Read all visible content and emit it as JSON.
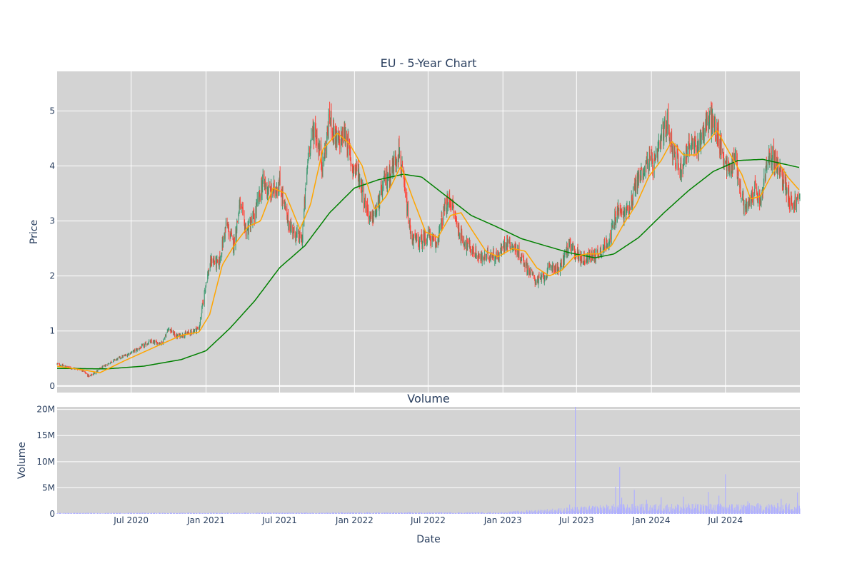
{
  "chart_data": [
    {
      "type": "candlestick",
      "title": "EU - 5-Year Chart",
      "ylabel": "Price",
      "ylim": [
        -0.12,
        5.72
      ],
      "yticks": [
        0,
        1,
        2,
        3,
        4,
        5
      ],
      "xlim": [
        "2020-01-01",
        "2024-12-31"
      ],
      "grid": true,
      "background": "#d3d3d3",
      "colors": {
        "up": "#3d9970",
        "down": "#ff4136",
        "ma_short": "#ffa500",
        "ma_long": "#008000"
      },
      "price_path": [
        [
          "2020-01-01",
          0.4
        ],
        [
          "2020-02-01",
          0.33
        ],
        [
          "2020-03-01",
          0.3
        ],
        [
          "2020-03-20",
          0.17
        ],
        [
          "2020-04-15",
          0.31
        ],
        [
          "2020-05-15",
          0.45
        ],
        [
          "2020-06-15",
          0.55
        ],
        [
          "2020-07-15",
          0.66
        ],
        [
          "2020-08-15",
          0.8
        ],
        [
          "2020-09-15",
          0.78
        ],
        [
          "2020-10-01",
          1.05
        ],
        [
          "2020-10-20",
          0.9
        ],
        [
          "2020-11-15",
          0.95
        ],
        [
          "2020-12-15",
          1.05
        ],
        [
          "2021-01-01",
          1.9
        ],
        [
          "2021-01-15",
          2.3
        ],
        [
          "2021-02-01",
          2.2
        ],
        [
          "2021-02-20",
          2.95
        ],
        [
          "2021-03-10",
          2.55
        ],
        [
          "2021-03-25",
          3.3
        ],
        [
          "2021-04-10",
          2.8
        ],
        [
          "2021-05-01",
          3.1
        ],
        [
          "2021-05-20",
          3.7
        ],
        [
          "2021-06-10",
          3.5
        ],
        [
          "2021-07-01",
          3.7
        ],
        [
          "2021-07-20",
          3.0
        ],
        [
          "2021-08-10",
          2.75
        ],
        [
          "2021-08-25",
          2.65
        ],
        [
          "2021-09-10",
          4.3
        ],
        [
          "2021-09-25",
          4.7
        ],
        [
          "2021-10-15",
          4.0
        ],
        [
          "2021-11-01",
          4.9
        ],
        [
          "2021-11-20",
          4.4
        ],
        [
          "2021-12-10",
          4.6
        ],
        [
          "2021-12-25",
          4.0
        ],
        [
          "2022-01-10",
          3.9
        ],
        [
          "2022-01-25",
          3.4
        ],
        [
          "2022-02-10",
          3.0
        ],
        [
          "2022-02-25",
          3.2
        ],
        [
          "2022-03-15",
          3.7
        ],
        [
          "2022-04-01",
          3.9
        ],
        [
          "2022-04-20",
          4.3
        ],
        [
          "2022-05-05",
          3.5
        ],
        [
          "2022-05-20",
          2.7
        ],
        [
          "2022-06-10",
          2.6
        ],
        [
          "2022-07-01",
          2.75
        ],
        [
          "2022-07-20",
          2.55
        ],
        [
          "2022-08-10",
          3.2
        ],
        [
          "2022-08-25",
          3.4
        ],
        [
          "2022-09-15",
          2.8
        ],
        [
          "2022-10-01",
          2.6
        ],
        [
          "2022-10-20",
          2.45
        ],
        [
          "2022-11-10",
          2.3
        ],
        [
          "2022-12-01",
          2.4
        ],
        [
          "2022-12-20",
          2.35
        ],
        [
          "2023-01-10",
          2.65
        ],
        [
          "2023-01-25",
          2.55
        ],
        [
          "2023-02-15",
          2.35
        ],
        [
          "2023-03-10",
          2.05
        ],
        [
          "2023-03-25",
          1.9
        ],
        [
          "2023-04-15",
          2.0
        ],
        [
          "2023-05-01",
          2.2
        ],
        [
          "2023-05-20",
          2.1
        ],
        [
          "2023-06-10",
          2.55
        ],
        [
          "2023-06-25",
          2.45
        ],
        [
          "2023-07-15",
          2.3
        ],
        [
          "2023-08-01",
          2.35
        ],
        [
          "2023-08-20",
          2.4
        ],
        [
          "2023-09-10",
          2.55
        ],
        [
          "2023-09-25",
          2.8
        ],
        [
          "2023-10-10",
          3.2
        ],
        [
          "2023-10-25",
          3.1
        ],
        [
          "2023-11-10",
          3.3
        ],
        [
          "2023-11-25",
          3.7
        ],
        [
          "2023-12-10",
          3.9
        ],
        [
          "2023-12-25",
          4.1
        ],
        [
          "2024-01-10",
          4.0
        ],
        [
          "2024-01-25",
          4.5
        ],
        [
          "2024-02-10",
          4.8
        ],
        [
          "2024-02-25",
          4.2
        ],
        [
          "2024-03-15",
          3.95
        ],
        [
          "2024-04-01",
          4.4
        ],
        [
          "2024-04-20",
          4.3
        ],
        [
          "2024-05-10",
          4.7
        ],
        [
          "2024-05-25",
          4.85
        ],
        [
          "2024-06-10",
          4.6
        ],
        [
          "2024-06-25",
          4.2
        ],
        [
          "2024-07-10",
          3.9
        ],
        [
          "2024-07-25",
          4.2
        ],
        [
          "2024-08-10",
          3.4
        ],
        [
          "2024-08-25",
          3.2
        ],
        [
          "2024-09-10",
          3.6
        ],
        [
          "2024-09-25",
          3.3
        ],
        [
          "2024-10-10",
          4.0
        ],
        [
          "2024-10-25",
          4.2
        ],
        [
          "2024-11-10",
          3.9
        ],
        [
          "2024-11-25",
          3.7
        ],
        [
          "2024-12-10",
          3.3
        ],
        [
          "2024-12-31",
          3.4
        ]
      ],
      "ma_short": [
        [
          "2020-01-01",
          0.36
        ],
        [
          "2020-03-15",
          0.28
        ],
        [
          "2020-04-15",
          0.24
        ],
        [
          "2020-06-15",
          0.46
        ],
        [
          "2020-09-01",
          0.72
        ],
        [
          "2020-11-01",
          0.92
        ],
        [
          "2020-12-15",
          0.98
        ],
        [
          "2021-01-10",
          1.3
        ],
        [
          "2021-02-10",
          2.2
        ],
        [
          "2021-03-15",
          2.6
        ],
        [
          "2021-04-15",
          2.9
        ],
        [
          "2021-05-15",
          3.0
        ],
        [
          "2021-06-15",
          3.6
        ],
        [
          "2021-07-15",
          3.5
        ],
        [
          "2021-08-20",
          2.85
        ],
        [
          "2021-09-15",
          3.3
        ],
        [
          "2021-10-15",
          4.3
        ],
        [
          "2021-11-20",
          4.6
        ],
        [
          "2021-12-20",
          4.4
        ],
        [
          "2022-01-20",
          4.0
        ],
        [
          "2022-02-20",
          3.2
        ],
        [
          "2022-03-20",
          3.45
        ],
        [
          "2022-04-25",
          4.0
        ],
        [
          "2022-05-25",
          3.4
        ],
        [
          "2022-06-25",
          2.8
        ],
        [
          "2022-07-25",
          2.7
        ],
        [
          "2022-08-25",
          3.1
        ],
        [
          "2022-09-20",
          3.15
        ],
        [
          "2022-10-20",
          2.8
        ],
        [
          "2022-11-20",
          2.45
        ],
        [
          "2022-12-20",
          2.35
        ],
        [
          "2023-01-25",
          2.5
        ],
        [
          "2023-02-25",
          2.45
        ],
        [
          "2023-03-25",
          2.15
        ],
        [
          "2023-04-25",
          2.0
        ],
        [
          "2023-05-25",
          2.1
        ],
        [
          "2023-06-25",
          2.35
        ],
        [
          "2023-07-25",
          2.4
        ],
        [
          "2023-08-25",
          2.4
        ],
        [
          "2023-09-25",
          2.55
        ],
        [
          "2023-10-25",
          2.95
        ],
        [
          "2023-11-25",
          3.3
        ],
        [
          "2023-12-25",
          3.8
        ],
        [
          "2024-01-25",
          4.1
        ],
        [
          "2024-02-20",
          4.45
        ],
        [
          "2024-03-20",
          4.2
        ],
        [
          "2024-04-20",
          4.2
        ],
        [
          "2024-05-20",
          4.45
        ],
        [
          "2024-06-10",
          4.65
        ],
        [
          "2024-07-10",
          4.25
        ],
        [
          "2024-08-10",
          3.85
        ],
        [
          "2024-09-01",
          3.4
        ],
        [
          "2024-09-25",
          3.45
        ],
        [
          "2024-10-20",
          3.8
        ],
        [
          "2024-11-10",
          4.05
        ],
        [
          "2024-12-01",
          3.8
        ],
        [
          "2024-12-31",
          3.55
        ]
      ],
      "ma_long": [
        [
          "2020-01-01",
          0.32
        ],
        [
          "2020-05-01",
          0.31
        ],
        [
          "2020-08-01",
          0.36
        ],
        [
          "2020-11-01",
          0.48
        ],
        [
          "2021-01-01",
          0.64
        ],
        [
          "2021-03-01",
          1.05
        ],
        [
          "2021-05-01",
          1.55
        ],
        [
          "2021-07-01",
          2.15
        ],
        [
          "2021-09-01",
          2.55
        ],
        [
          "2021-11-01",
          3.15
        ],
        [
          "2022-01-01",
          3.6
        ],
        [
          "2022-03-01",
          3.75
        ],
        [
          "2022-05-01",
          3.85
        ],
        [
          "2022-06-15",
          3.8
        ],
        [
          "2022-08-15",
          3.45
        ],
        [
          "2022-10-15",
          3.1
        ],
        [
          "2022-12-15",
          2.9
        ],
        [
          "2023-02-15",
          2.68
        ],
        [
          "2023-04-15",
          2.55
        ],
        [
          "2023-06-15",
          2.42
        ],
        [
          "2023-08-15",
          2.33
        ],
        [
          "2023-10-01",
          2.4
        ],
        [
          "2023-12-01",
          2.7
        ],
        [
          "2024-02-01",
          3.15
        ],
        [
          "2024-04-01",
          3.55
        ],
        [
          "2024-06-01",
          3.9
        ],
        [
          "2024-08-01",
          4.1
        ],
        [
          "2024-10-01",
          4.12
        ],
        [
          "2024-12-31",
          3.97
        ]
      ]
    },
    {
      "type": "bar",
      "title": "Volume",
      "ylabel": "Volume",
      "xlabel": "Date",
      "ylim": [
        0,
        20500000
      ],
      "yticks": [
        0,
        5000000,
        10000000,
        15000000,
        20000000
      ],
      "ytick_labels": [
        "0",
        "5M",
        "10M",
        "15M",
        "20M"
      ],
      "xticks": [
        "2020-07-01",
        "2021-01-01",
        "2021-07-01",
        "2022-01-01",
        "2022-07-01",
        "2023-01-01",
        "2023-07-01",
        "2024-01-01",
        "2024-07-01"
      ],
      "xtick_labels": [
        "Jul 2020",
        "Jan 2021",
        "Jul 2021",
        "Jan 2022",
        "Jul 2022",
        "Jan 2023",
        "Jul 2023",
        "Jan 2024",
        "Jul 2024"
      ],
      "background": "#d3d3d3",
      "bar_color": "#b0b0ff",
      "volume_level": [
        [
          "2020-01-01",
          150000
        ],
        [
          "2022-12-31",
          250000
        ],
        [
          "2023-03-01",
          500000
        ],
        [
          "2023-06-01",
          800000
        ],
        [
          "2023-10-01",
          1300000
        ],
        [
          "2024-12-31",
          1400000
        ]
      ],
      "volume_spikes": [
        [
          "2023-06-28",
          20500000
        ],
        [
          "2023-06-14",
          1800000
        ],
        [
          "2023-10-05",
          5200000
        ],
        [
          "2023-10-15",
          9000000
        ],
        [
          "2023-10-20",
          3100000
        ],
        [
          "2023-11-20",
          4600000
        ],
        [
          "2023-12-20",
          2700000
        ],
        [
          "2024-01-25",
          3200000
        ],
        [
          "2024-03-20",
          3300000
        ],
        [
          "2024-05-20",
          4200000
        ],
        [
          "2024-06-15",
          3500000
        ],
        [
          "2024-07-01",
          7600000
        ],
        [
          "2024-08-25",
          2400000
        ],
        [
          "2024-11-15",
          2900000
        ],
        [
          "2024-12-25",
          4100000
        ]
      ]
    }
  ]
}
